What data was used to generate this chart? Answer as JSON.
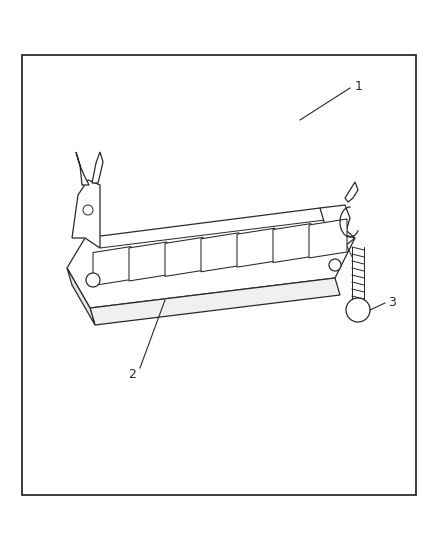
{
  "bg_color": "#ffffff",
  "border_color": "#1a1a1a",
  "line_color": "#2a2a2a",
  "fig_width": 4.38,
  "fig_height": 5.33,
  "dpi": 100,
  "label_1": "1",
  "label_2": "2",
  "label_3": "3",
  "label_fontsize": 9,
  "border_linewidth": 1.2,
  "part_linewidth": 0.9
}
